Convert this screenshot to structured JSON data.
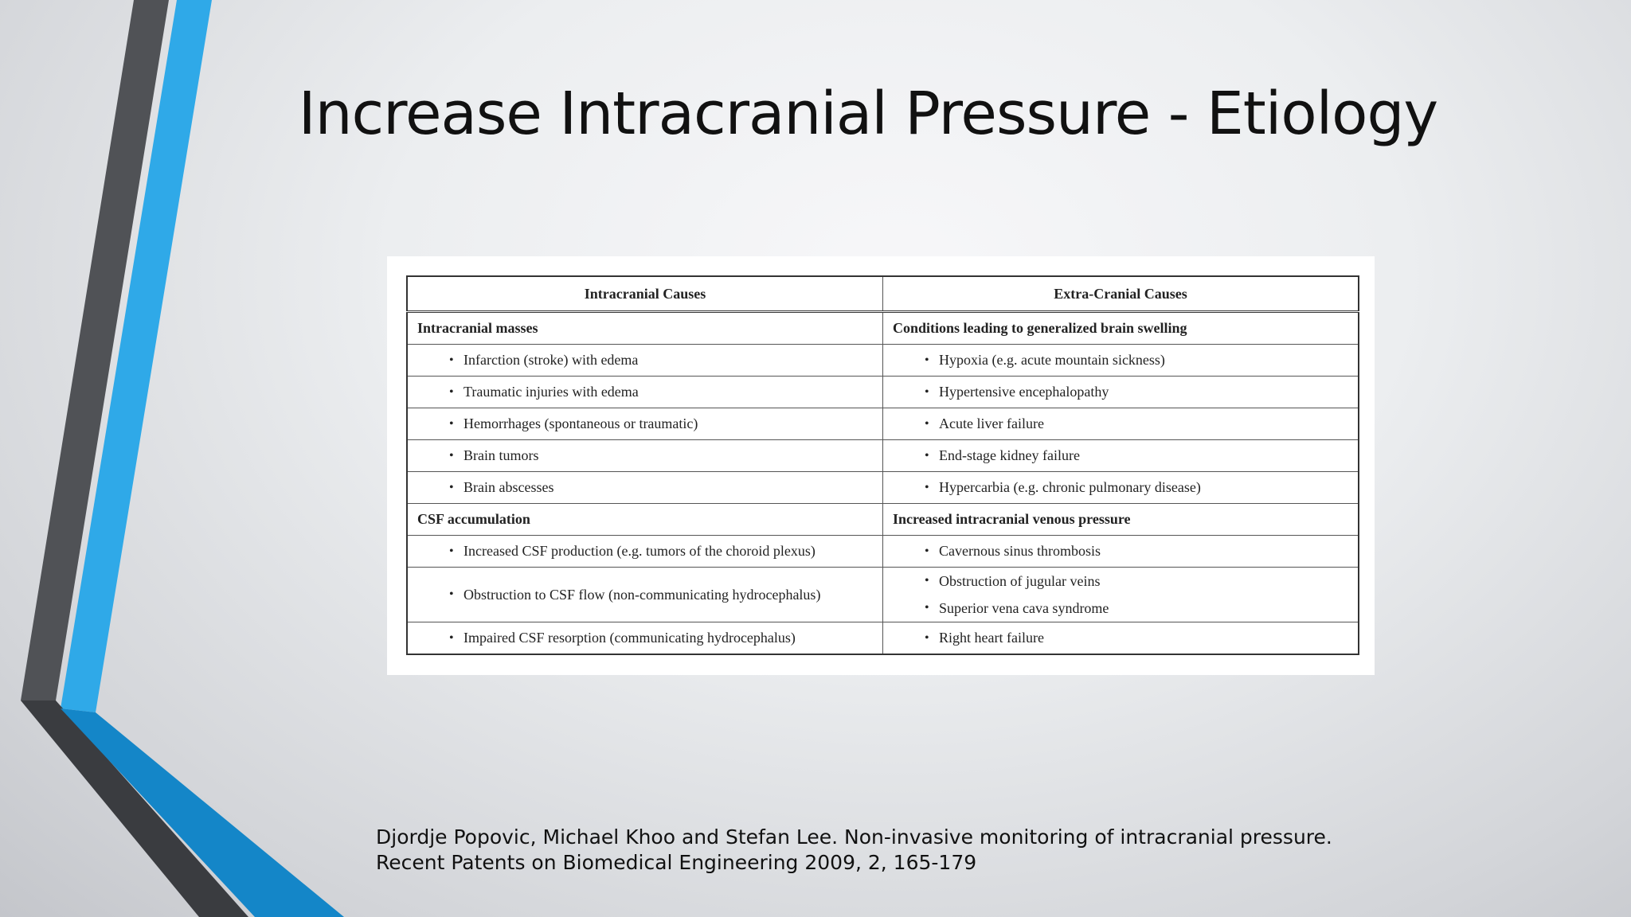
{
  "slide": {
    "title": "Increase Intracranial Pressure - Etiology",
    "accent_color": "#2fa7e6",
    "dark_color": "#4a4c50"
  },
  "table": {
    "headers": [
      "Intracranial Causes",
      "Extra-Cranial Causes"
    ],
    "rows": [
      {
        "type": "section",
        "left": "Intracranial masses",
        "right": "Conditions leading to generalized brain swelling"
      },
      {
        "type": "item",
        "left": [
          "Infarction (stroke) with edema"
        ],
        "right": [
          "Hypoxia (e.g. acute mountain sickness)"
        ]
      },
      {
        "type": "item",
        "left": [
          "Traumatic injuries with edema"
        ],
        "right": [
          "Hypertensive encephalopathy"
        ]
      },
      {
        "type": "item",
        "left": [
          "Hemorrhages (spontaneous or traumatic)"
        ],
        "right": [
          "Acute liver failure"
        ]
      },
      {
        "type": "item",
        "left": [
          "Brain tumors"
        ],
        "right": [
          "End-stage kidney failure"
        ]
      },
      {
        "type": "item",
        "left": [
          "Brain abscesses"
        ],
        "right": [
          "Hypercarbia (e.g. chronic pulmonary disease)"
        ]
      },
      {
        "type": "section",
        "left": "CSF accumulation",
        "right": "Increased intracranial venous pressure"
      },
      {
        "type": "item",
        "left": [
          "Increased CSF production (e.g. tumors of the choroid plexus)"
        ],
        "right": [
          "Cavernous sinus thrombosis"
        ]
      },
      {
        "type": "item",
        "left": [
          "Obstruction to CSF flow (non-communicating hydrocephalus)"
        ],
        "right": [
          "Obstruction of jugular veins",
          "Superior vena cava syndrome"
        ]
      },
      {
        "type": "item",
        "left": [
          "Impaired CSF resorption (communicating hydrocephalus)"
        ],
        "right": [
          "Right heart failure"
        ]
      }
    ],
    "bullet_glyph": "•"
  },
  "citation": {
    "line1": "Djordje Popovic, Michael Khoo and Stefan Lee. Non-invasive monitoring of intracranial pressure.",
    "line2": "Recent Patents on Biomedical Engineering 2009, 2, 165-179"
  }
}
